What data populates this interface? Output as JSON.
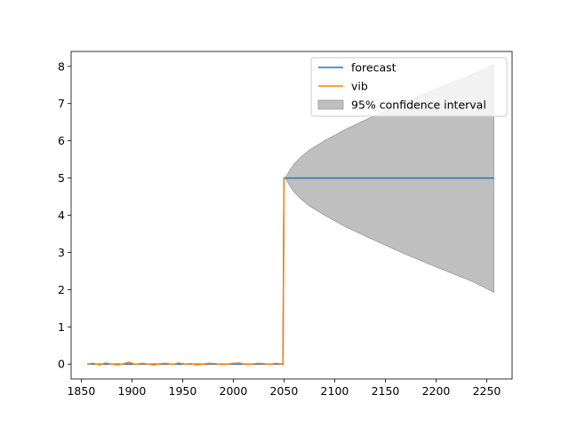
{
  "chart_data": {
    "type": "line",
    "title": "",
    "xlabel": "",
    "ylabel": "",
    "xlim": [
      1840,
      2275
    ],
    "ylim": [
      -0.4,
      8.4
    ],
    "x_ticks": [
      1850,
      1900,
      1950,
      2000,
      2050,
      2100,
      2150,
      2200,
      2250
    ],
    "y_ticks": [
      0,
      1,
      2,
      3,
      4,
      5,
      6,
      7,
      8
    ],
    "grid": false,
    "legend": "top-right",
    "series": [
      {
        "name": "forecast",
        "color": "#1f77b4",
        "x": [
          1856,
          2049,
          2050,
          2051,
          2060,
          2100,
          2150,
          2200,
          2257
        ],
        "y": [
          0.0,
          0.0,
          5.0,
          5.0,
          5.0,
          5.0,
          5.0,
          5.0,
          5.0
        ]
      },
      {
        "name": "vib",
        "color": "#ff7f0e",
        "x": [
          1856,
          1862,
          1868,
          1874,
          1880,
          1886,
          1892,
          1897,
          1903,
          1910,
          1916,
          1922,
          1928,
          1934,
          1940,
          1946,
          1952,
          1958,
          1964,
          1970,
          1976,
          1982,
          1988,
          1994,
          2000,
          2006,
          2012,
          2018,
          2024,
          2030,
          2036,
          2042,
          2048,
          2049,
          2050,
          2051
        ],
        "y": [
          0.0,
          0.02,
          -0.02,
          0.03,
          0.0,
          -0.02,
          0.01,
          0.05,
          -0.01,
          0.02,
          0.0,
          -0.02,
          0.01,
          0.02,
          -0.01,
          0.03,
          0.0,
          0.01,
          -0.02,
          0.0,
          0.02,
          0.01,
          -0.01,
          0.0,
          0.02,
          0.03,
          -0.01,
          0.0,
          0.02,
          0.01,
          -0.01,
          0.02,
          0.0,
          0.02,
          5.0,
          5.0
        ]
      }
    ],
    "confidence_interval": {
      "name": "95% confidence interval",
      "color": "#bfbfbf",
      "x": [
        2051,
        2053,
        2056,
        2060,
        2066,
        2075,
        2090,
        2110,
        2135,
        2160,
        2185,
        2210,
        2235,
        2257
      ],
      "upper": [
        5.0,
        5.08,
        5.22,
        5.38,
        5.55,
        5.75,
        6.0,
        6.3,
        6.62,
        6.93,
        7.22,
        7.5,
        7.77,
        8.05
      ],
      "lower": [
        5.0,
        4.92,
        4.78,
        4.62,
        4.45,
        4.25,
        4.0,
        3.7,
        3.38,
        3.07,
        2.78,
        2.5,
        2.23,
        1.93
      ]
    }
  }
}
